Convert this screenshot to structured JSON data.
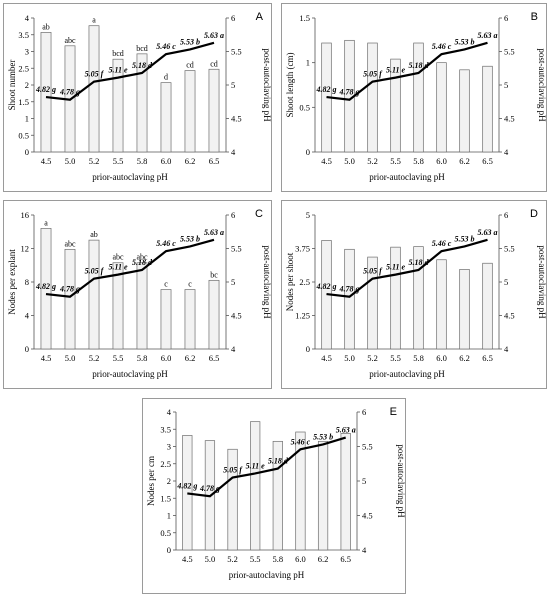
{
  "chart_data": [
    {
      "type": "bar",
      "panel": "A",
      "categories": [
        "4.5",
        "5.0",
        "5.2",
        "5.5",
        "5.8",
        "6.0",
        "6.2",
        "6.5"
      ],
      "xlabel": "prior-autoclaving pH",
      "ylabel": "Shoot number",
      "ylim": [
        0,
        4
      ],
      "yticks": [
        "0",
        "0.5",
        "1",
        "1.5",
        "2",
        "2.5",
        "3",
        "3.5",
        "4"
      ],
      "y2label": "post-autoclaving pH",
      "y2lim": [
        4,
        6
      ],
      "y2ticks": [
        "4",
        "4.5",
        "5",
        "5.5",
        "6"
      ],
      "values": [
        3.57,
        3.17,
        3.77,
        2.77,
        2.93,
        2.07,
        2.43,
        2.47
      ],
      "bar_labels": [
        "ab",
        "abc",
        "a",
        "bcd",
        "bcd",
        "d",
        "cd",
        "cd"
      ],
      "line_values": [
        4.82,
        4.78,
        5.05,
        5.11,
        5.18,
        5.46,
        5.53,
        5.63
      ],
      "line_labels": [
        "4.82 g",
        "4.78 g",
        "5.05 f",
        "5.11 e",
        "5.18 d",
        "5.46 c",
        "5.53 b",
        "5.63 a"
      ]
    },
    {
      "type": "bar",
      "panel": "B",
      "categories": [
        "4.5",
        "5.0",
        "5.2",
        "5.5",
        "5.8",
        "6.0",
        "6.2",
        "6.5"
      ],
      "xlabel": "prior-autoclaving pH",
      "ylabel": "Shoot length (cm)",
      "ylim": [
        0,
        1.5
      ],
      "yticks": [
        "0",
        "0.5",
        "1",
        "1.5"
      ],
      "y2label": "post-autoclaving pH",
      "y2lim": [
        4,
        6
      ],
      "y2ticks": [
        "4",
        "4.5",
        "5",
        "5.5",
        "6"
      ],
      "values": [
        1.22,
        1.25,
        1.22,
        1.04,
        1.22,
        1.0,
        0.92,
        0.96
      ],
      "bar_labels": [],
      "line_values": [
        4.82,
        4.78,
        5.05,
        5.11,
        5.18,
        5.46,
        5.53,
        5.63
      ],
      "line_labels": [
        "4.82 g",
        "4.78 g",
        "5.05 f",
        "5.11 e",
        "5.18 d",
        "5.46 c",
        "5.53 b",
        "5.63 a"
      ]
    },
    {
      "type": "bar",
      "panel": "C",
      "categories": [
        "4.5",
        "5.0",
        "5.2",
        "5.5",
        "5.8",
        "6.0",
        "6.2",
        "6.5"
      ],
      "xlabel": "prior-autoclaving pH",
      "ylabel": "Nodes per explant",
      "ylim": [
        0,
        16
      ],
      "yticks": [
        "0",
        "4",
        "8",
        "12",
        "16"
      ],
      "y2label": "post-autoclaving pH",
      "y2lim": [
        4,
        6
      ],
      "y2ticks": [
        "4",
        "4.5",
        "5",
        "5.5",
        "6"
      ],
      "values": [
        14.4,
        11.9,
        13.0,
        10.3,
        10.3,
        7.1,
        7.1,
        8.2
      ],
      "bar_labels": [
        "a",
        "abc",
        "ab",
        "abc",
        "abc",
        "c",
        "c",
        "bc"
      ],
      "line_values": [
        4.82,
        4.78,
        5.05,
        5.11,
        5.18,
        5.46,
        5.53,
        5.63
      ],
      "line_labels": [
        "4.82 g",
        "4.78 g",
        "5.05 f",
        "5.11 e",
        "5.18 d",
        "5.46 c",
        "5.53 b",
        "5.63 a"
      ]
    },
    {
      "type": "bar",
      "panel": "D",
      "categories": [
        "4.5",
        "5.0",
        "5.2",
        "5.5",
        "5.8",
        "6.0",
        "6.2",
        "6.5"
      ],
      "xlabel": "prior-autoclaving pH",
      "ylabel": "Nodes per shoot",
      "ylim": [
        0,
        5
      ],
      "yticks": [
        "0",
        "1.25",
        "2.5",
        "3.75",
        "5"
      ],
      "y2label": "post-autoclaving pH",
      "y2lim": [
        4,
        6
      ],
      "y2ticks": [
        "4",
        "4.5",
        "5",
        "5.5",
        "6"
      ],
      "values": [
        4.05,
        3.72,
        3.43,
        3.8,
        3.82,
        3.33,
        2.97,
        3.2
      ],
      "bar_labels": [],
      "line_values": [
        4.82,
        4.78,
        5.05,
        5.11,
        5.18,
        5.46,
        5.53,
        5.63
      ],
      "line_labels": [
        "4.82 g",
        "4.78 g",
        "5.05 f",
        "5.11 e",
        "5.18 d",
        "5.46 c",
        "5.53 b",
        "5.63 a"
      ]
    },
    {
      "type": "bar",
      "panel": "E",
      "categories": [
        "4.5",
        "5.0",
        "5.2",
        "5.5",
        "5.8",
        "6.0",
        "6.2",
        "6.5"
      ],
      "xlabel": "prior-autoclaving pH",
      "ylabel": "Nodes per cm",
      "ylim": [
        0,
        4
      ],
      "yticks": [
        "0",
        "0.5",
        "1",
        "1.5",
        "2",
        "2.5",
        "3",
        "3.5",
        "4"
      ],
      "y2label": "post-autoclaving pH",
      "y2lim": [
        4,
        6
      ],
      "y2ticks": [
        "4",
        "4.5",
        "5",
        "5.5",
        "6"
      ],
      "values": [
        3.32,
        3.17,
        2.92,
        3.72,
        3.15,
        3.42,
        3.15,
        3.38
      ],
      "bar_labels": [],
      "line_values": [
        4.82,
        4.78,
        5.05,
        5.11,
        5.18,
        5.46,
        5.53,
        5.63
      ],
      "line_labels": [
        "4.82 g",
        "4.78 g",
        "5.05 f",
        "5.11 e",
        "5.18 d",
        "5.46 c",
        "5.53 b",
        "5.63 a"
      ]
    }
  ]
}
